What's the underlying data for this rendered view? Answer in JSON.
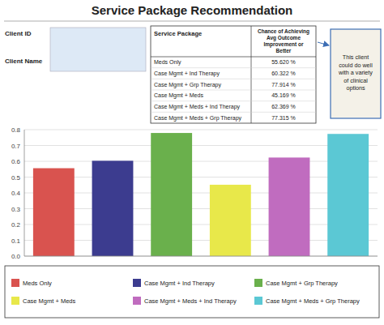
{
  "chart_data": {
    "type": "bar",
    "title": "Service Package Recommendation",
    "categories": [
      "Meds Only",
      "Case Mgmt + Ind Therapy",
      "Case Mgmt + Grp Therapy",
      "Case Mgmt + Meds",
      "Case Mgmt + Meds + Ind Therapy",
      "Case Mgmt + Meds + Grp Therapy"
    ],
    "values": [
      0.5562,
      0.60322,
      0.77914,
      0.45169,
      0.62369,
      0.77315
    ],
    "value_labels": [
      "55.620 %",
      "60.322 %",
      "77.914 %",
      "45.169 %",
      "62.369 %",
      "77.315 %"
    ],
    "colors": [
      "#d9534f",
      "#3c3c8f",
      "#6ab04c",
      "#e8e84a",
      "#c06cbf",
      "#5bc8d4"
    ],
    "ylim": [
      0.0,
      0.8
    ],
    "yticks": [
      {
        "value": 0.0,
        "label": "0.0"
      },
      0.1,
      0.2,
      0.3,
      0.4,
      0.5,
      0.6,
      0.7,
      0.8
    ],
    "grid": true,
    "legend": "bottom",
    "tick_labels": "y",
    "annotations": [
      "Client ID",
      "Client Name",
      "Service Package",
      "Chance of Achieving\nAvg Outcome\nImprovement or\nBetter",
      "This client\ncould do well\nwith a variety\nof clinical\noptions"
    ]
  }
}
